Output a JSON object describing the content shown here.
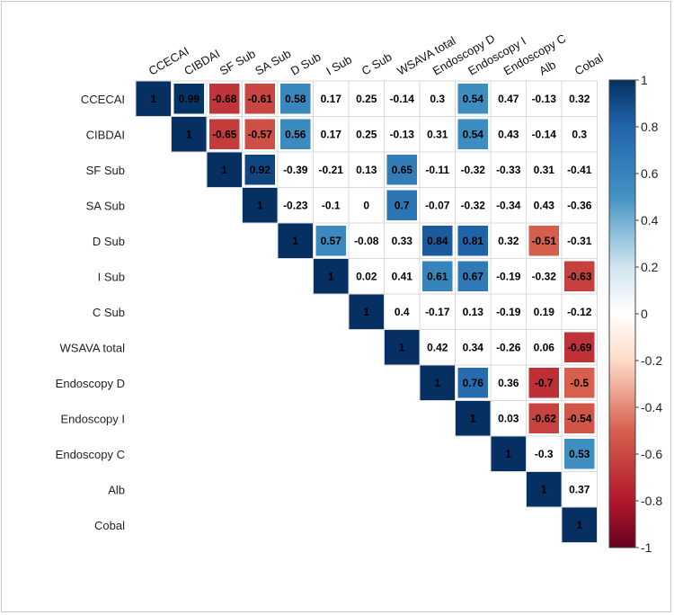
{
  "chart_data": {
    "type": "heatmap",
    "style": "upper-triangle correlation matrix",
    "variables": [
      "CCECAI",
      "CIBDAI",
      "SF Sub",
      "SA Sub",
      "D Sub",
      "I Sub",
      "C Sub",
      "WSAVA total",
      "Endoscopy D",
      "Endoscopy I",
      "Endoscopy C",
      "Alb",
      "Cobal"
    ],
    "column_labels": [
      "CCECAI",
      "CIBDAI",
      "SF Sub",
      "SA Sub",
      "D Sub",
      "I Sub",
      "C Sub",
      "WSAVA total",
      "Endoscopy D",
      "Endoscopy I",
      "Endoscopy C",
      "Alb",
      "Cobal"
    ],
    "matrix": [
      [
        1,
        0.99,
        -0.68,
        -0.61,
        0.58,
        0.17,
        0.25,
        -0.14,
        0.3,
        0.54,
        0.47,
        -0.13,
        0.32
      ],
      [
        null,
        1,
        -0.65,
        -0.57,
        0.56,
        0.17,
        0.25,
        -0.13,
        0.31,
        0.54,
        0.43,
        -0.14,
        0.3
      ],
      [
        null,
        null,
        1,
        0.92,
        -0.39,
        -0.21,
        0.13,
        0.65,
        -0.11,
        -0.32,
        -0.33,
        0.31,
        -0.41
      ],
      [
        null,
        null,
        null,
        1,
        -0.23,
        -0.1,
        0,
        0.7,
        -0.07,
        -0.32,
        -0.34,
        0.43,
        -0.36
      ],
      [
        null,
        null,
        null,
        null,
        1,
        0.57,
        -0.08,
        0.33,
        0.84,
        0.81,
        0.32,
        -0.51,
        -0.31
      ],
      [
        null,
        null,
        null,
        null,
        null,
        1,
        0.02,
        0.41,
        0.61,
        0.67,
        -0.19,
        -0.32,
        -0.63
      ],
      [
        null,
        null,
        null,
        null,
        null,
        null,
        1,
        0.4,
        -0.17,
        0.13,
        -0.19,
        0.19,
        -0.12
      ],
      [
        null,
        null,
        null,
        null,
        null,
        null,
        null,
        1,
        0.42,
        0.34,
        -0.26,
        0.06,
        -0.69
      ],
      [
        null,
        null,
        null,
        null,
        null,
        null,
        null,
        null,
        1,
        0.76,
        0.36,
        -0.7,
        -0.5
      ],
      [
        null,
        null,
        null,
        null,
        null,
        null,
        null,
        null,
        null,
        1,
        0.03,
        -0.62,
        -0.54
      ],
      [
        null,
        null,
        null,
        null,
        null,
        null,
        null,
        null,
        null,
        null,
        1,
        -0.3,
        0.53
      ],
      [
        null,
        null,
        null,
        null,
        null,
        null,
        null,
        null,
        null,
        null,
        null,
        1,
        0.37
      ],
      [
        null,
        null,
        null,
        null,
        null,
        null,
        null,
        null,
        null,
        null,
        null,
        null,
        1
      ]
    ],
    "highlight_threshold": 0.5,
    "colorbar": {
      "range": [
        -1,
        1
      ],
      "ticks": [
        "1",
        "0.8",
        "0.6",
        "0.4",
        "0.2",
        "0",
        "-0.2",
        "-0.4",
        "-0.6",
        "-0.8",
        "-1"
      ],
      "colors": {
        "negative": "#67001f",
        "mid_negative": "#d6604d",
        "neutral": "#ffffff",
        "mid_positive": "#4393c3",
        "positive": "#053061"
      }
    },
    "title": "",
    "xlabel": "",
    "ylabel": ""
  }
}
